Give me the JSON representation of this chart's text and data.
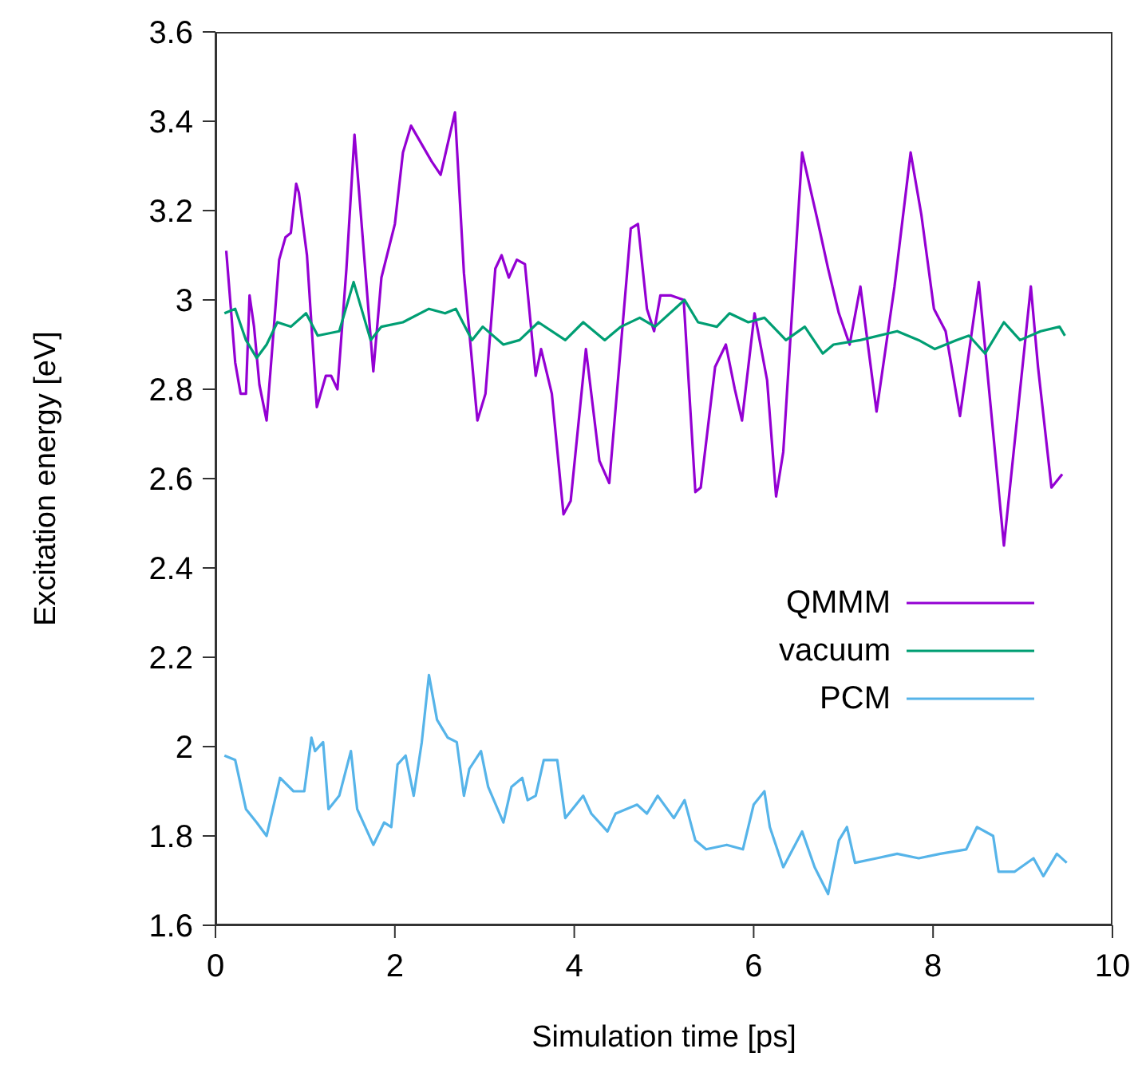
{
  "chart_data": {
    "type": "line",
    "xlabel": "Simulation time [ps]",
    "ylabel": "Excitation energy  [eV]",
    "xlim": [
      0,
      10
    ],
    "xticks": [
      0,
      2,
      4,
      6,
      8,
      10
    ],
    "ylim": [
      1.6,
      3.6
    ],
    "yticks": [
      1.6,
      1.8,
      2,
      2.2,
      2.4,
      2.6,
      2.8,
      3,
      3.2,
      3.4,
      3.6
    ],
    "grid": false,
    "legend": "right",
    "marker": "none",
    "line_style": "solid",
    "series": [
      {
        "name": "QMMM",
        "color": "#9400d3",
        "x": [
          0.12,
          0.22,
          0.28,
          0.34,
          0.38,
          0.43,
          0.49,
          0.57,
          0.71,
          0.78,
          0.84,
          0.9,
          0.93,
          1.02,
          1.13,
          1.23,
          1.29,
          1.36,
          1.46,
          1.55,
          1.76,
          1.85,
          2.0,
          2.09,
          2.18,
          2.41,
          2.51,
          2.67,
          2.77,
          2.92,
          3.01,
          3.12,
          3.19,
          3.27,
          3.36,
          3.45,
          3.57,
          3.63,
          3.75,
          3.88,
          3.96,
          4.13,
          4.28,
          4.39,
          4.58,
          4.63,
          4.71,
          4.81,
          4.89,
          4.96,
          5.08,
          5.22,
          5.35,
          5.41,
          5.57,
          5.69,
          5.79,
          5.87,
          6.01,
          6.15,
          6.25,
          6.33,
          6.54,
          6.71,
          6.83,
          6.95,
          7.07,
          7.19,
          7.37,
          7.57,
          7.75,
          7.87,
          8.01,
          8.14,
          8.3,
          8.51,
          8.79,
          9.09,
          9.17,
          9.32,
          9.44
        ],
        "values": [
          3.11,
          2.86,
          2.79,
          2.79,
          3.01,
          2.94,
          2.81,
          2.73,
          3.09,
          3.14,
          3.15,
          3.26,
          3.24,
          3.1,
          2.76,
          2.83,
          2.83,
          2.8,
          3.07,
          3.37,
          2.84,
          3.05,
          3.17,
          3.33,
          3.39,
          3.31,
          3.28,
          3.42,
          3.06,
          2.73,
          2.79,
          3.07,
          3.1,
          3.05,
          3.09,
          3.08,
          2.83,
          2.89,
          2.79,
          2.52,
          2.55,
          2.89,
          2.64,
          2.59,
          3.04,
          3.16,
          3.17,
          2.98,
          2.93,
          3.01,
          3.01,
          3.0,
          2.57,
          2.58,
          2.85,
          2.9,
          2.8,
          2.73,
          2.97,
          2.82,
          2.56,
          2.66,
          3.33,
          3.18,
          3.07,
          2.97,
          2.9,
          3.03,
          2.75,
          3.03,
          3.33,
          3.19,
          2.98,
          2.93,
          2.74,
          3.04,
          2.45,
          3.03,
          2.85,
          2.58,
          2.61
        ]
      },
      {
        "name": "vacuum",
        "color": "#009e73",
        "x": [
          0.1,
          0.22,
          0.34,
          0.46,
          0.57,
          0.69,
          0.84,
          1.01,
          1.14,
          1.38,
          1.54,
          1.73,
          1.85,
          2.09,
          2.38,
          2.56,
          2.68,
          2.86,
          2.98,
          3.21,
          3.39,
          3.6,
          3.9,
          4.1,
          4.34,
          4.52,
          4.73,
          4.9,
          5.23,
          5.38,
          5.59,
          5.73,
          5.94,
          6.12,
          6.36,
          6.57,
          6.77,
          6.89,
          7.19,
          7.6,
          7.84,
          8.02,
          8.26,
          8.4,
          8.58,
          8.79,
          8.97,
          9.2,
          9.41,
          9.47
        ],
        "values": [
          2.97,
          2.98,
          2.91,
          2.87,
          2.9,
          2.95,
          2.94,
          2.97,
          2.92,
          2.93,
          3.04,
          2.91,
          2.94,
          2.95,
          2.98,
          2.97,
          2.98,
          2.91,
          2.94,
          2.9,
          2.91,
          2.95,
          2.91,
          2.95,
          2.91,
          2.94,
          2.96,
          2.94,
          3.0,
          2.95,
          2.94,
          2.97,
          2.95,
          2.96,
          2.91,
          2.94,
          2.88,
          2.9,
          2.91,
          2.93,
          2.91,
          2.89,
          2.91,
          2.92,
          2.88,
          2.95,
          2.91,
          2.93,
          2.94,
          2.92
        ]
      },
      {
        "name": "PCM",
        "color": "#56b4e9",
        "x": [
          0.1,
          0.22,
          0.34,
          0.46,
          0.57,
          0.72,
          0.87,
          0.99,
          1.07,
          1.11,
          1.2,
          1.26,
          1.38,
          1.51,
          1.58,
          1.76,
          1.88,
          1.96,
          2.03,
          2.12,
          2.21,
          2.3,
          2.38,
          2.47,
          2.59,
          2.69,
          2.77,
          2.83,
          2.96,
          3.04,
          3.21,
          3.3,
          3.42,
          3.48,
          3.57,
          3.66,
          3.81,
          3.9,
          4.1,
          4.19,
          4.37,
          4.46,
          4.7,
          4.81,
          4.93,
          5.11,
          5.23,
          5.35,
          5.47,
          5.7,
          5.88,
          6.0,
          6.12,
          6.18,
          6.33,
          6.54,
          6.68,
          6.83,
          6.95,
          7.04,
          7.13,
          7.37,
          7.6,
          7.84,
          8.08,
          8.37,
          8.49,
          8.67,
          8.73,
          8.91,
          9.12,
          9.23,
          9.38,
          9.49
        ],
        "values": [
          1.98,
          1.97,
          1.86,
          1.83,
          1.8,
          1.93,
          1.9,
          1.9,
          2.02,
          1.99,
          2.01,
          1.86,
          1.89,
          1.99,
          1.86,
          1.78,
          1.83,
          1.82,
          1.96,
          1.98,
          1.89,
          2.01,
          2.16,
          2.06,
          2.02,
          2.01,
          1.89,
          1.95,
          1.99,
          1.91,
          1.83,
          1.91,
          1.93,
          1.88,
          1.89,
          1.97,
          1.97,
          1.84,
          1.89,
          1.85,
          1.81,
          1.85,
          1.87,
          1.85,
          1.89,
          1.84,
          1.88,
          1.79,
          1.77,
          1.78,
          1.77,
          1.87,
          1.9,
          1.82,
          1.73,
          1.81,
          1.73,
          1.67,
          1.79,
          1.82,
          1.74,
          1.75,
          1.76,
          1.75,
          1.76,
          1.77,
          1.82,
          1.8,
          1.72,
          1.72,
          1.75,
          1.71,
          1.76,
          1.74
        ]
      }
    ]
  }
}
